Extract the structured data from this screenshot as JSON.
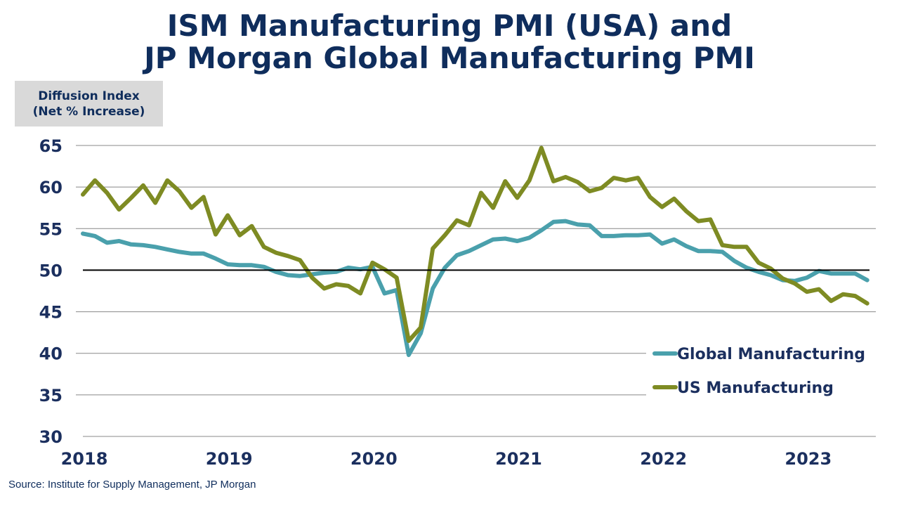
{
  "title_line1": "ISM Manufacturing PMI (USA) and",
  "title_line2": "JP Morgan Global Manufacturing PMI",
  "ylabel_line1": "Diffusion Index",
  "ylabel_line2": "(Net % Increase)",
  "source": "Source:  Institute for Supply Management, JP Morgan",
  "colors": {
    "global": "#4aa0ac",
    "us": "#7e8b23",
    "text": "#1b2f5e",
    "reference": "#000000",
    "grid": "#888888"
  },
  "chart_data": {
    "type": "line",
    "x_start": "2018-01",
    "x_tick_labels": [
      "2018",
      "2019",
      "2020",
      "2021",
      "2022",
      "2023"
    ],
    "ylim": [
      30,
      65
    ],
    "y_ticks": [
      30,
      35,
      40,
      45,
      50,
      55,
      60,
      65
    ],
    "reference_line": 50,
    "grid": true,
    "legend_position": "bottom-right",
    "series": [
      {
        "name": "Global Manufacturing",
        "values": [
          54.4,
          54.1,
          53.3,
          53.5,
          53.1,
          53.0,
          52.8,
          52.5,
          52.2,
          52.0,
          52.0,
          51.4,
          50.7,
          50.6,
          50.6,
          50.4,
          49.8,
          49.4,
          49.3,
          49.5,
          49.7,
          49.8,
          50.3,
          50.1,
          50.4,
          47.2,
          47.6,
          39.8,
          42.4,
          47.8,
          50.3,
          51.8,
          52.3,
          53.0,
          53.7,
          53.8,
          53.5,
          53.9,
          54.8,
          55.8,
          55.9,
          55.5,
          55.4,
          54.1,
          54.1,
          54.2,
          54.2,
          54.3,
          53.2,
          53.7,
          52.9,
          52.3,
          52.3,
          52.2,
          51.1,
          50.3,
          49.8,
          49.4,
          48.8,
          48.7,
          49.1,
          49.9,
          49.6,
          49.6,
          49.6,
          48.8
        ]
      },
      {
        "name": "US Manufacturing",
        "values": [
          59.1,
          60.8,
          59.3,
          57.3,
          58.7,
          60.2,
          58.1,
          60.8,
          59.5,
          57.5,
          58.8,
          54.3,
          56.6,
          54.2,
          55.3,
          52.8,
          52.1,
          51.7,
          51.2,
          49.1,
          47.8,
          48.3,
          48.1,
          47.2,
          50.9,
          50.1,
          49.1,
          41.5,
          43.1,
          52.6,
          54.2,
          56.0,
          55.4,
          59.3,
          57.5,
          60.7,
          58.7,
          60.8,
          64.7,
          60.7,
          61.2,
          60.6,
          59.5,
          59.9,
          61.1,
          60.8,
          61.1,
          58.8,
          57.6,
          58.6,
          57.1,
          55.9,
          56.1,
          53.0,
          52.8,
          52.8,
          50.9,
          50.2,
          49.0,
          48.4,
          47.4,
          47.7,
          46.3,
          47.1,
          46.9,
          46.0
        ]
      }
    ]
  }
}
